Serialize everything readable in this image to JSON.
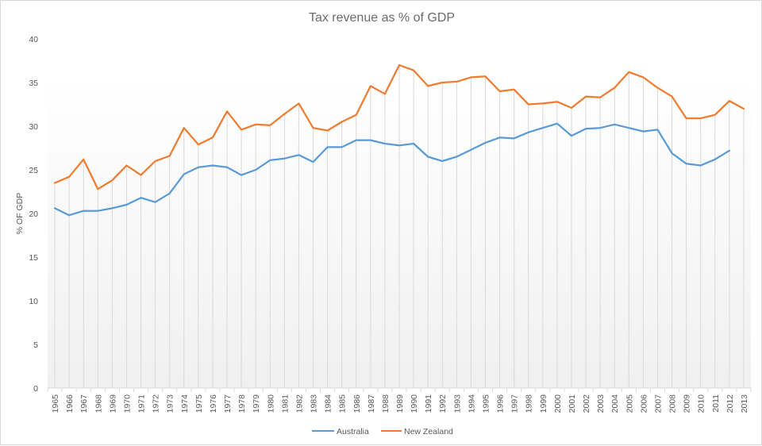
{
  "chart_data": {
    "type": "line",
    "title": "Tax revenue as % of GDP",
    "xlabel": "",
    "ylabel": "% OF GDP",
    "ylim": [
      0,
      40
    ],
    "yticks": [
      0,
      5,
      10,
      15,
      20,
      25,
      30,
      35,
      40
    ],
    "grid": false,
    "drop_lines": true,
    "legend": "bottom",
    "categories": [
      "1965",
      "1966",
      "1967",
      "1968",
      "1969",
      "1970",
      "1971",
      "1972",
      "1973",
      "1974",
      "1975",
      "1976",
      "1977",
      "1978",
      "1979",
      "1980",
      "1981",
      "1982",
      "1983",
      "1984",
      "1985",
      "1986",
      "1987",
      "1988",
      "1989",
      "1990",
      "1991",
      "1992",
      "1993",
      "1994",
      "1995",
      "1996",
      "1997",
      "1998",
      "1999",
      "2000",
      "2001",
      "2002",
      "2003",
      "2004",
      "2005",
      "2006",
      "2007",
      "2008",
      "2009",
      "2010",
      "2011",
      "2012",
      "2013"
    ],
    "series": [
      {
        "name": "Australia",
        "color": "#5B9BD5",
        "values": [
          20.6,
          19.8,
          20.3,
          20.3,
          20.6,
          21.0,
          21.8,
          21.3,
          22.3,
          24.5,
          25.3,
          25.5,
          25.3,
          24.4,
          25.0,
          26.1,
          26.3,
          26.7,
          25.9,
          27.6,
          27.6,
          28.4,
          28.4,
          28.0,
          27.8,
          28.0,
          26.5,
          26.0,
          26.5,
          27.3,
          28.1,
          28.7,
          28.6,
          29.3,
          29.8,
          30.3,
          28.9,
          29.7,
          29.8,
          30.2,
          29.8,
          29.4,
          29.6,
          26.9,
          25.7,
          25.5,
          26.2,
          27.2,
          null
        ]
      },
      {
        "name": "New Zealand",
        "color": "#ED7D31",
        "values": [
          23.5,
          24.2,
          26.2,
          22.8,
          23.8,
          25.5,
          24.4,
          26.0,
          26.6,
          29.8,
          27.9,
          28.7,
          31.7,
          29.6,
          30.2,
          30.1,
          31.4,
          32.6,
          29.8,
          29.5,
          30.5,
          31.3,
          34.6,
          33.7,
          37.0,
          36.4,
          34.6,
          35.0,
          35.1,
          35.6,
          35.7,
          34.0,
          34.2,
          32.5,
          32.6,
          32.8,
          32.1,
          33.4,
          33.3,
          34.4,
          36.2,
          35.6,
          34.4,
          33.4,
          30.9,
          30.9,
          31.3,
          32.9,
          32.0
        ]
      }
    ]
  }
}
